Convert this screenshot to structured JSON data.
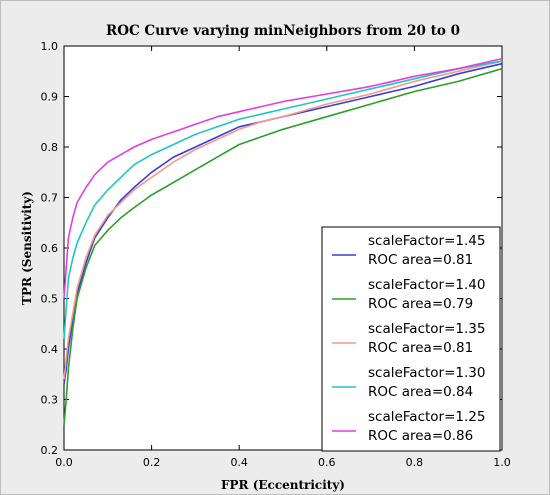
{
  "chart_data": {
    "type": "line",
    "title": "ROC Curve varying minNeighbors from 20 to 0",
    "xlabel": "FPR (Eccentricity)",
    "ylabel": "TPR (Sensitivity)",
    "xlim": [
      0.0,
      1.0
    ],
    "ylim": [
      0.2,
      1.0
    ],
    "xticks": [
      "0.0",
      "0.2",
      "0.4",
      "0.6",
      "0.8",
      "1.0"
    ],
    "yticks": [
      "0.2",
      "0.3",
      "0.4",
      "0.5",
      "0.6",
      "0.7",
      "0.8",
      "0.9",
      "1.0"
    ],
    "grid": false,
    "legend_position": "lower-right",
    "series": [
      {
        "name": "scaleFactor=1.45",
        "area_label": "ROC area=0.81",
        "color": "#3b3bdc",
        "x": [
          0.0,
          0.005,
          0.01,
          0.02,
          0.03,
          0.05,
          0.07,
          0.1,
          0.13,
          0.16,
          0.2,
          0.25,
          0.3,
          0.35,
          0.4,
          0.45,
          0.5,
          0.6,
          0.7,
          0.8,
          0.9,
          1.0
        ],
        "y": [
          0.33,
          0.36,
          0.4,
          0.46,
          0.51,
          0.57,
          0.62,
          0.66,
          0.695,
          0.72,
          0.75,
          0.78,
          0.8,
          0.82,
          0.84,
          0.85,
          0.86,
          0.88,
          0.9,
          0.92,
          0.945,
          0.965
        ]
      },
      {
        "name": "scaleFactor=1.40",
        "area_label": "ROC area=0.79",
        "color": "#2aa02a",
        "x": [
          0.0,
          0.005,
          0.01,
          0.02,
          0.03,
          0.05,
          0.07,
          0.1,
          0.13,
          0.16,
          0.2,
          0.25,
          0.3,
          0.35,
          0.4,
          0.45,
          0.5,
          0.6,
          0.7,
          0.8,
          0.9,
          1.0
        ],
        "y": [
          0.25,
          0.3,
          0.36,
          0.44,
          0.5,
          0.56,
          0.605,
          0.635,
          0.66,
          0.68,
          0.705,
          0.73,
          0.755,
          0.78,
          0.805,
          0.82,
          0.835,
          0.86,
          0.885,
          0.91,
          0.93,
          0.955
        ]
      },
      {
        "name": "scaleFactor=1.35",
        "area_label": "ROC area=0.81",
        "color": "#f29a8a",
        "x": [
          0.0,
          0.005,
          0.01,
          0.02,
          0.03,
          0.05,
          0.07,
          0.1,
          0.13,
          0.16,
          0.2,
          0.25,
          0.3,
          0.35,
          0.4,
          0.45,
          0.5,
          0.6,
          0.7,
          0.8,
          0.9,
          1.0
        ],
        "y": [
          0.34,
          0.38,
          0.42,
          0.47,
          0.52,
          0.58,
          0.625,
          0.665,
          0.69,
          0.715,
          0.74,
          0.77,
          0.795,
          0.815,
          0.835,
          0.85,
          0.86,
          0.885,
          0.905,
          0.93,
          0.95,
          0.97
        ]
      },
      {
        "name": "scaleFactor=1.30",
        "area_label": "ROC area=0.84",
        "color": "#22c4c4",
        "x": [
          0.0,
          0.005,
          0.01,
          0.02,
          0.03,
          0.05,
          0.07,
          0.1,
          0.13,
          0.16,
          0.2,
          0.25,
          0.3,
          0.35,
          0.4,
          0.45,
          0.5,
          0.6,
          0.7,
          0.8,
          0.9,
          1.0
        ],
        "y": [
          0.42,
          0.48,
          0.54,
          0.58,
          0.61,
          0.65,
          0.685,
          0.715,
          0.74,
          0.765,
          0.785,
          0.805,
          0.825,
          0.84,
          0.855,
          0.865,
          0.875,
          0.895,
          0.915,
          0.935,
          0.955,
          0.97
        ]
      },
      {
        "name": "scaleFactor=1.25",
        "area_label": "ROC area=0.86",
        "color": "#e040e0",
        "x": [
          0.0,
          0.005,
          0.01,
          0.02,
          0.03,
          0.05,
          0.07,
          0.1,
          0.13,
          0.16,
          0.2,
          0.25,
          0.3,
          0.35,
          0.4,
          0.45,
          0.5,
          0.6,
          0.7,
          0.8,
          0.9,
          1.0
        ],
        "y": [
          0.5,
          0.56,
          0.62,
          0.66,
          0.69,
          0.72,
          0.745,
          0.77,
          0.785,
          0.8,
          0.815,
          0.83,
          0.845,
          0.86,
          0.87,
          0.88,
          0.89,
          0.905,
          0.92,
          0.94,
          0.955,
          0.975
        ]
      }
    ]
  }
}
